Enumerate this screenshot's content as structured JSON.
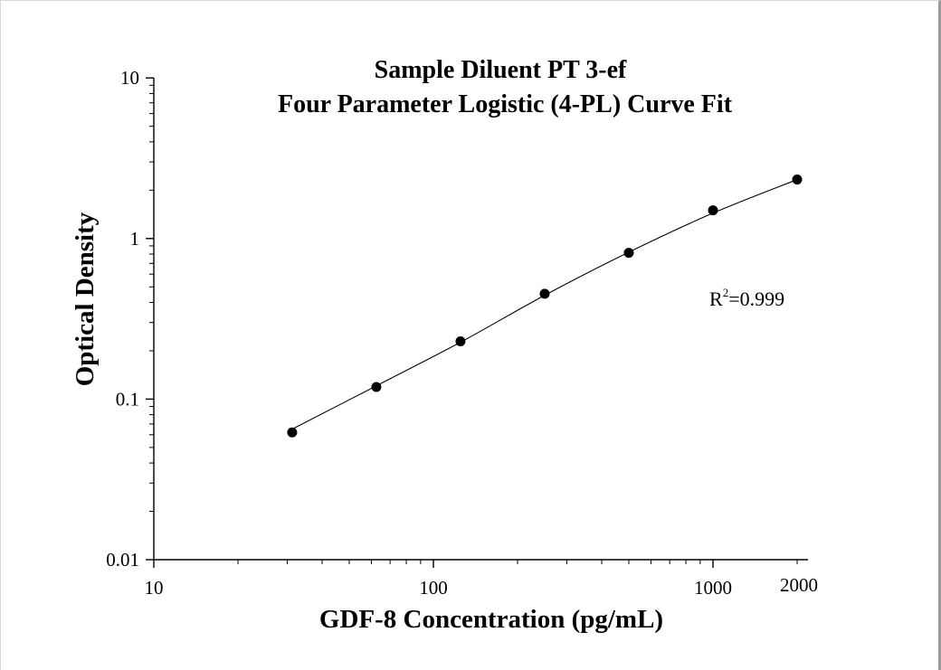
{
  "chart_data": {
    "type": "scatter",
    "title_line1": "Sample Diluent PT 3-ef",
    "title_line2": "Four Parameter Logistic (4-PL) Curve Fit",
    "xlabel": "GDF-8 Concentration (pg/mL)",
    "ylabel": "Optical Density",
    "x_scale": "log",
    "y_scale": "log",
    "xlim": [
      10,
      2000
    ],
    "ylim": [
      0.01,
      10
    ],
    "x_ticks": [
      {
        "value": 10,
        "label": "10"
      },
      {
        "value": 100,
        "label": "100"
      },
      {
        "value": 1000,
        "label": "1000"
      },
      {
        "value": 2000,
        "label": "2000"
      }
    ],
    "y_ticks": [
      {
        "value": 0.01,
        "label": "0.01"
      },
      {
        "value": 0.1,
        "label": "0.1"
      },
      {
        "value": 1,
        "label": "1"
      },
      {
        "value": 10,
        "label": "10"
      }
    ],
    "grid": false,
    "points": [
      {
        "x": 31.25,
        "y": 0.062
      },
      {
        "x": 62.5,
        "y": 0.119
      },
      {
        "x": 125,
        "y": 0.229
      },
      {
        "x": 250,
        "y": 0.453
      },
      {
        "x": 500,
        "y": 0.815
      },
      {
        "x": 1000,
        "y": 1.498
      },
      {
        "x": 2000,
        "y": 2.33
      }
    ],
    "fit_curve": {
      "model": "4-PL",
      "samples": [
        {
          "x": 31.25,
          "y": 0.065
        },
        {
          "x": 62.5,
          "y": 0.121
        },
        {
          "x": 125,
          "y": 0.226
        },
        {
          "x": 250,
          "y": 0.443
        },
        {
          "x": 500,
          "y": 0.822
        },
        {
          "x": 1000,
          "y": 1.44
        },
        {
          "x": 2000,
          "y": 2.33
        }
      ]
    },
    "annotation": {
      "prefix": "R",
      "superscript": "2",
      "suffix": "=0.999"
    },
    "colors": {
      "marker": "#000000",
      "curve": "#000000",
      "axis": "#000000"
    }
  }
}
